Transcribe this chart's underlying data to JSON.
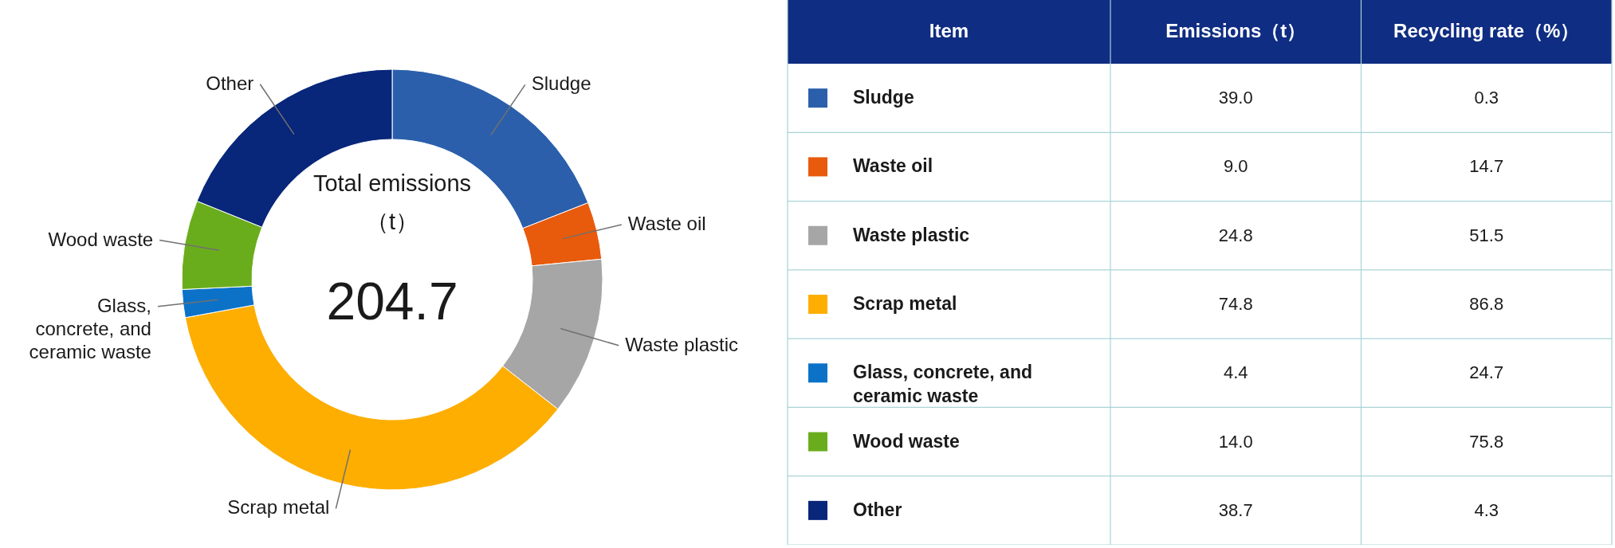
{
  "chart_data": [
    {
      "type": "donut",
      "categories": [
        "Sludge",
        "Waste oil",
        "Waste plastic",
        "Scrap metal",
        "Glass, concrete, and ceramic waste",
        "Wood waste",
        "Other"
      ],
      "values": [
        19.05,
        4.4,
        12.12,
        36.53,
        2.15,
        6.84,
        18.91
      ],
      "colors": [
        "#2b5fab",
        "#e85a0c",
        "#a5a6a5",
        "#fdae00",
        "#0b72c8",
        "#6aad1c",
        "#08267a"
      ],
      "annotations": [
        "Total emissions",
        "（t）",
        "204.7"
      ]
    },
    {
      "type": "other",
      "xlabel": "Item",
      "categories": [
        "Sludge",
        "Waste oil",
        "Waste plastic",
        "Scrap metal",
        "Glass, concrete, and ceramic waste",
        "Wood waste",
        "Other"
      ],
      "colors": [
        "#2b5fab",
        "#e85a0c",
        "#a5a6a5",
        "#fdae00",
        "#0b72c8",
        "#6aad1c",
        "#08267a"
      ],
      "series": [
        {
          "name": "Emissions（t）",
          "values": [
            39.0,
            9.0,
            24.8,
            74.8,
            4.4,
            14.0,
            38.7
          ],
          "value_labels": [
            "39.0",
            "9.0",
            "24.8",
            "74.8",
            "4.4",
            "14.0",
            "38.7"
          ]
        },
        {
          "name": "Recycling rate（%）",
          "values": [
            0.3,
            14.7,
            51.5,
            86.8,
            24.7,
            75.8,
            4.3
          ]
        }
      ],
      "data_labels": true
    }
  ]
}
